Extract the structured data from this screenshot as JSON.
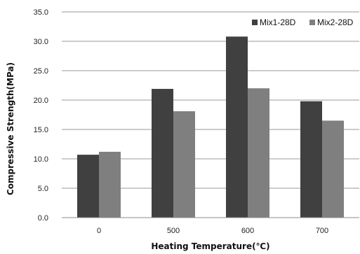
{
  "chart_data": {
    "type": "bar",
    "categories": [
      "0",
      "500",
      "600",
      "700"
    ],
    "series": [
      {
        "name": "Mix1-28D",
        "values": [
          10.7,
          21.9,
          30.8,
          19.8
        ],
        "color": "#404040"
      },
      {
        "name": "Mix2-28D",
        "values": [
          11.2,
          18.1,
          22.0,
          16.5
        ],
        "color": "#7f7f7f"
      }
    ],
    "title": "",
    "xlabel": "Heating Temperature(℃)",
    "ylabel": "Compressive Strength(MPa)",
    "ylim": [
      0,
      35
    ],
    "yticks": [
      "0.0",
      "5.0",
      "10.0",
      "15.0",
      "20.0",
      "25.0",
      "30.0",
      "35.0"
    ],
    "grid": true,
    "legend_position": "top-right"
  }
}
